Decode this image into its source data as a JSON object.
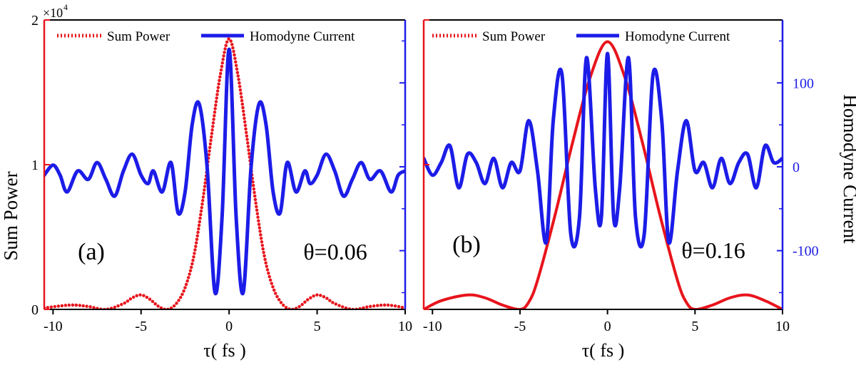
{
  "figure": {
    "exponent_label": "×10",
    "exponent_sup": "4",
    "left_axis_label": "Sum Power",
    "right_axis_label": "Homodyne Current",
    "colors": {
      "power": "#e8141c",
      "current": "#1c1ce8",
      "frame": "#000000"
    }
  },
  "chart_data": [
    {
      "type": "line",
      "panel": "(a)",
      "annotation": "θ=0.06",
      "xlabel": "τ( fs )",
      "xlim": [
        -10.5,
        10
      ],
      "x_ticks": [
        -10,
        -5,
        0,
        5,
        10
      ],
      "ylim_left": [
        0,
        2
      ],
      "left_ticks": [
        0,
        1,
        2
      ],
      "left_tick_labels": [
        "0",
        "1",
        "2"
      ],
      "left_scale": "×10^4",
      "ylim_right": [
        -170,
        175
      ],
      "right_ticks": [
        -100,
        0,
        100
      ],
      "right_tick_labels": [],
      "legend": {
        "placement": "top",
        "entries": [
          "Sum Power",
          "Homodyne Current"
        ]
      },
      "series": [
        {
          "name": "Sum Power",
          "axis": "left",
          "style": "dotted",
          "x": [
            -10.5,
            -9,
            -8,
            -7,
            -6,
            -5.5,
            -5,
            -4.5,
            -4,
            -3.5,
            -3,
            -2.5,
            -2,
            -1.5,
            -1,
            -0.5,
            0,
            0.5,
            1,
            1.5,
            2,
            2.5,
            3,
            3.5,
            4,
            4.5,
            5,
            5.5,
            6,
            7,
            8,
            9,
            10
          ],
          "y": [
            0.01,
            0.03,
            0.02,
            0.0,
            0.04,
            0.08,
            0.1,
            0.07,
            0.02,
            0.0,
            0.04,
            0.15,
            0.37,
            0.75,
            1.2,
            1.62,
            1.87,
            1.62,
            1.2,
            0.75,
            0.37,
            0.15,
            0.04,
            0.0,
            0.02,
            0.07,
            0.1,
            0.08,
            0.04,
            0.0,
            0.02,
            0.03,
            0.01
          ]
        },
        {
          "name": "Homodyne Current",
          "axis": "right",
          "style": "solid",
          "x": [
            -10.5,
            -10,
            -9.6,
            -9.2,
            -8.6,
            -8,
            -7.5,
            -7,
            -6.5,
            -6,
            -5.5,
            -5,
            -4.6,
            -4.3,
            -3.8,
            -3.3,
            -2.9,
            -2.5,
            -2.1,
            -1.7,
            -1.25,
            -0.8,
            -0.4,
            0,
            0.4,
            0.8,
            1.25,
            1.7,
            2.1,
            2.5,
            2.9,
            3.3,
            3.8,
            4.3,
            4.6,
            5,
            5.5,
            6,
            6.5,
            7,
            7.5,
            8,
            8.6,
            9.2,
            9.6,
            10
          ],
          "y": [
            -10,
            2,
            -10,
            -30,
            -5,
            -15,
            5,
            -15,
            -35,
            -5,
            15,
            -10,
            -20,
            -5,
            -30,
            5,
            -55,
            -30,
            50,
            75,
            0,
            -150,
            -60,
            140,
            -60,
            -150,
            0,
            75,
            50,
            -30,
            -55,
            5,
            -30,
            -5,
            -20,
            -10,
            15,
            -5,
            -35,
            -15,
            5,
            -15,
            -5,
            -30,
            -10,
            -5
          ]
        }
      ]
    },
    {
      "type": "line",
      "panel": "(b)",
      "annotation": "θ=0.16",
      "xlabel": "τ( fs )",
      "xlim": [
        -10.5,
        10
      ],
      "x_ticks": [
        -10,
        -5,
        0,
        5,
        10
      ],
      "ylim_left": [
        0,
        2
      ],
      "left_ticks": [
        0,
        1,
        2
      ],
      "left_tick_labels": [],
      "ylim_right": [
        -170,
        175
      ],
      "right_ticks": [
        -100,
        0,
        100
      ],
      "right_tick_labels": [
        "-100",
        "0",
        "100"
      ],
      "series": [
        {
          "name": "Sum Power",
          "axis": "left",
          "style": "solid",
          "x": [
            -10.5,
            -9.5,
            -8,
            -7,
            -6,
            -5,
            -4.5,
            -4,
            -3,
            -2,
            -1,
            0,
            1,
            2,
            3,
            4,
            4.5,
            5,
            6,
            7,
            8,
            9,
            10
          ],
          "y": [
            0.0,
            0.06,
            0.1,
            0.08,
            0.03,
            0.0,
            0.05,
            0.2,
            0.65,
            1.15,
            1.6,
            1.85,
            1.6,
            1.15,
            0.65,
            0.2,
            0.05,
            0.0,
            0.03,
            0.08,
            0.1,
            0.06,
            0.0
          ]
        },
        {
          "name": "Homodyne Current",
          "axis": "right",
          "style": "solid",
          "x": [
            -10.5,
            -10,
            -9.5,
            -9,
            -8.5,
            -8,
            -7.5,
            -7,
            -6.5,
            -6,
            -5.5,
            -5,
            -4.5,
            -4,
            -3.5,
            -3.1,
            -2.6,
            -2.1,
            -1.6,
            -1.2,
            -0.7,
            -0.35,
            0,
            0.35,
            0.7,
            1.2,
            1.6,
            2.1,
            2.6,
            3.1,
            3.5,
            4,
            4.5,
            5,
            5.5,
            6,
            6.5,
            7,
            7.5,
            8,
            8.5,
            9,
            9.5,
            10
          ],
          "y": [
            10,
            -10,
            5,
            25,
            -25,
            15,
            5,
            -20,
            10,
            -25,
            5,
            -5,
            55,
            -5,
            -90,
            55,
            110,
            -80,
            -60,
            130,
            -25,
            -60,
            135,
            -60,
            -25,
            130,
            -60,
            -80,
            110,
            55,
            -90,
            -5,
            55,
            -5,
            5,
            -25,
            10,
            -20,
            5,
            15,
            -25,
            25,
            5,
            10
          ]
        }
      ]
    }
  ]
}
